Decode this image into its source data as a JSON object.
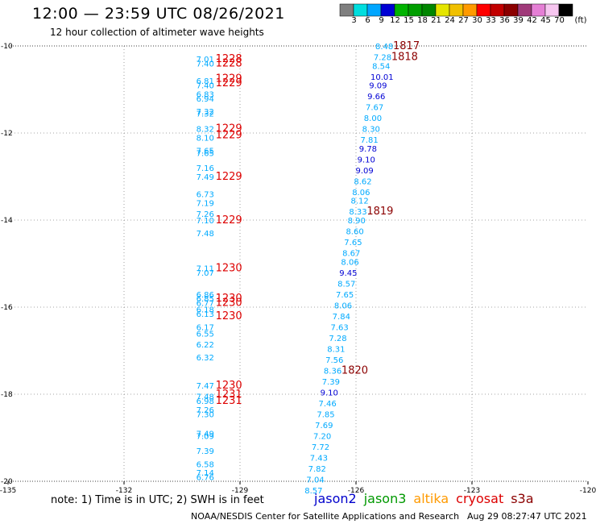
{
  "header": {
    "title": "12:00 — 23:59 UTC 08/26/2021",
    "subtitle": "12 hour collection of altimeter wave heights"
  },
  "color_scale": {
    "unit_label": "(ft)",
    "labels": [
      "3",
      "6",
      "9",
      "12",
      "15",
      "18",
      "21",
      "24",
      "27",
      "30",
      "33",
      "36",
      "39",
      "42",
      "45",
      "70"
    ],
    "colors": [
      "#7f7f7f",
      "#00dede",
      "#00a6ff",
      "#0000d4",
      "#00b300",
      "#009e00",
      "#008600",
      "#e5e500",
      "#f0c000",
      "#ff9a00",
      "#ff0000",
      "#c20000",
      "#8b0000",
      "#a03a7a",
      "#e57fd5",
      "#f7c6f0",
      "#000000"
    ]
  },
  "chart_data": {
    "type": "scatter",
    "xlim": [
      -135,
      -120
    ],
    "ylim": [
      -20,
      -10
    ],
    "x_ticks": [
      "-135",
      "-132",
      "-129",
      "-126",
      "-123",
      "-120"
    ],
    "y_ticks": [
      "-10",
      "-12",
      "-14",
      "-16",
      "-18",
      "-20"
    ],
    "grid": true,
    "series": [
      {
        "name": "cryosat",
        "color": "#dd0000",
        "points": [
          {
            "x": -129.3,
            "y": -10.3,
            "v": "7.01"
          },
          {
            "x": -129.3,
            "y": -10.4,
            "v": "7.40"
          },
          {
            "x": -129.3,
            "y": -10.8,
            "v": "6.81"
          },
          {
            "x": -129.3,
            "y": -10.9,
            "v": "7.40"
          },
          {
            "x": -129.3,
            "y": -11.1,
            "v": "6.83"
          },
          {
            "x": -129.3,
            "y": -11.2,
            "v": "6.94"
          },
          {
            "x": -129.3,
            "y": -11.5,
            "v": "7.32"
          },
          {
            "x": -129.3,
            "y": -11.55,
            "v": "7.32"
          },
          {
            "x": -129.3,
            "y": -11.9,
            "v": "8.32"
          },
          {
            "x": -129.3,
            "y": -12.1,
            "v": "8.10"
          },
          {
            "x": -129.3,
            "y": -12.4,
            "v": "7.65"
          },
          {
            "x": -129.3,
            "y": -12.45,
            "v": "7.65"
          },
          {
            "x": -129.3,
            "y": -12.8,
            "v": "7.16"
          },
          {
            "x": -129.3,
            "y": -13.0,
            "v": "7.49"
          },
          {
            "x": -129.3,
            "y": -13.4,
            "v": "6.73"
          },
          {
            "x": -129.3,
            "y": -13.6,
            "v": "7.19"
          },
          {
            "x": -129.3,
            "y": -13.85,
            "v": "7.26"
          },
          {
            "x": -129.3,
            "y": -14.0,
            "v": "7.10"
          },
          {
            "x": -129.3,
            "y": -14.3,
            "v": "7.48"
          },
          {
            "x": -129.3,
            "y": -15.1,
            "v": "7.11"
          },
          {
            "x": -129.3,
            "y": -15.2,
            "v": "7.07"
          },
          {
            "x": -129.3,
            "y": -15.7,
            "v": "6.86"
          },
          {
            "x": -129.3,
            "y": -15.8,
            "v": "6.85"
          },
          {
            "x": -129.3,
            "y": -15.9,
            "v": "6.77"
          },
          {
            "x": -129.3,
            "y": -16.05,
            "v": "6.18"
          },
          {
            "x": -129.3,
            "y": -16.15,
            "v": "6.13"
          },
          {
            "x": -129.3,
            "y": -16.45,
            "v": "6.17"
          },
          {
            "x": -129.3,
            "y": -16.6,
            "v": "6.55"
          },
          {
            "x": -129.3,
            "y": -16.85,
            "v": "6.22"
          },
          {
            "x": -129.3,
            "y": -17.15,
            "v": "6.32"
          },
          {
            "x": -129.3,
            "y": -17.8,
            "v": "7.47"
          },
          {
            "x": -129.3,
            "y": -18.05,
            "v": "7.48"
          },
          {
            "x": -129.3,
            "y": -18.15,
            "v": "6.98"
          },
          {
            "x": -129.3,
            "y": -18.35,
            "v": "7.26"
          },
          {
            "x": -129.3,
            "y": -18.45,
            "v": "7.30"
          },
          {
            "x": -129.3,
            "y": -18.9,
            "v": "7.49"
          },
          {
            "x": -129.3,
            "y": -18.95,
            "v": "7.09"
          },
          {
            "x": -129.3,
            "y": -19.3,
            "v": "7.39"
          },
          {
            "x": -129.3,
            "y": -19.6,
            "v": "6.58"
          },
          {
            "x": -129.3,
            "y": -19.8,
            "v": "7.14"
          },
          {
            "x": -129.3,
            "y": -19.9,
            "v": "6.76"
          }
        ]
      },
      {
        "name": "cryosat-pass",
        "color": "#dd0000",
        "points": [
          {
            "x": -129.3,
            "y": -10.3,
            "v": "1228"
          },
          {
            "x": -129.3,
            "y": -10.4,
            "v": "1228"
          },
          {
            "x": -129.3,
            "y": -10.75,
            "v": "1229"
          },
          {
            "x": -129.3,
            "y": -10.85,
            "v": "1229"
          },
          {
            "x": -129.3,
            "y": -11.9,
            "v": "1229"
          },
          {
            "x": -129.3,
            "y": -12.05,
            "v": "1229"
          },
          {
            "x": -129.3,
            "y": -13.0,
            "v": "1229"
          },
          {
            "x": -129.3,
            "y": -14.0,
            "v": "1229"
          },
          {
            "x": -129.3,
            "y": -15.1,
            "v": "1230"
          },
          {
            "x": -129.3,
            "y": -15.8,
            "v": "1230"
          },
          {
            "x": -129.3,
            "y": -15.9,
            "v": "1230"
          },
          {
            "x": -129.3,
            "y": -16.2,
            "v": "1230"
          },
          {
            "x": -129.3,
            "y": -17.8,
            "v": "1230"
          },
          {
            "x": -129.3,
            "y": -18.0,
            "v": "1231"
          },
          {
            "x": -129.3,
            "y": -18.15,
            "v": "1231"
          }
        ]
      },
      {
        "name": "jason2",
        "color": "#0000cc",
        "points": [
          {
            "x": -126.0,
            "y": -10.0,
            "v": "8.48"
          },
          {
            "x": -126.0,
            "y": -10.25,
            "v": "7.28"
          },
          {
            "x": -126.0,
            "y": -10.45,
            "v": "8.54"
          },
          {
            "x": -126.0,
            "y": -10.7,
            "v": "10.01"
          },
          {
            "x": -126.0,
            "y": -10.9,
            "v": "9.09"
          },
          {
            "x": -126.0,
            "y": -11.15,
            "v": "9.66"
          },
          {
            "x": -126.0,
            "y": -11.4,
            "v": "7.67"
          },
          {
            "x": -126.0,
            "y": -11.65,
            "v": "8.00"
          },
          {
            "x": -126.0,
            "y": -11.9,
            "v": "8.30"
          },
          {
            "x": -126.0,
            "y": -12.15,
            "v": "7.81"
          },
          {
            "x": -126.0,
            "y": -12.35,
            "v": "9.78"
          },
          {
            "x": -126.0,
            "y": -12.6,
            "v": "9.10"
          },
          {
            "x": -126.0,
            "y": -12.85,
            "v": "9.09"
          },
          {
            "x": -126.0,
            "y": -13.1,
            "v": "8.62"
          },
          {
            "x": -126.0,
            "y": -13.35,
            "v": "8.06"
          },
          {
            "x": -126.0,
            "y": -13.55,
            "v": "8.12"
          },
          {
            "x": -126.0,
            "y": -13.8,
            "v": "8.33"
          },
          {
            "x": -126.0,
            "y": -14.0,
            "v": "8.90"
          },
          {
            "x": -126.0,
            "y": -14.25,
            "v": "8.60"
          },
          {
            "x": -126.0,
            "y": -14.5,
            "v": "7.65"
          },
          {
            "x": -126.0,
            "y": -14.75,
            "v": "8.67"
          },
          {
            "x": -126.0,
            "y": -14.95,
            "v": "8.06"
          },
          {
            "x": -126.0,
            "y": -15.2,
            "v": "9.45"
          },
          {
            "x": -126.0,
            "y": -15.45,
            "v": "8.57"
          },
          {
            "x": -126.0,
            "y": -15.7,
            "v": "7.65"
          },
          {
            "x": -126.0,
            "y": -15.95,
            "v": "8.06"
          },
          {
            "x": -126.0,
            "y": -16.2,
            "v": "7.84"
          },
          {
            "x": -126.0,
            "y": -16.45,
            "v": "7.63"
          },
          {
            "x": -126.0,
            "y": -16.7,
            "v": "7.28"
          },
          {
            "x": -126.0,
            "y": -16.95,
            "v": "8.31"
          },
          {
            "x": -126.0,
            "y": -17.2,
            "v": "7.56"
          },
          {
            "x": -126.0,
            "y": -17.45,
            "v": "8.36"
          },
          {
            "x": -126.0,
            "y": -17.7,
            "v": "7.39"
          },
          {
            "x": -126.0,
            "y": -17.95,
            "v": "9.10"
          },
          {
            "x": -126.0,
            "y": -18.2,
            "v": "7.46"
          },
          {
            "x": -126.0,
            "y": -18.45,
            "v": "7.85"
          },
          {
            "x": -126.0,
            "y": -18.7,
            "v": "7.69"
          },
          {
            "x": -126.0,
            "y": -18.95,
            "v": "7.20"
          },
          {
            "x": -126.0,
            "y": -19.2,
            "v": "7.72"
          },
          {
            "x": -126.0,
            "y": -19.45,
            "v": "7.43"
          },
          {
            "x": -126.0,
            "y": -19.7,
            "v": "7.82"
          },
          {
            "x": -126.0,
            "y": -19.95,
            "v": "7.04"
          },
          {
            "x": -126.0,
            "y": -20.2,
            "v": "8.57"
          }
        ]
      },
      {
        "name": "jason2-pass",
        "color": "#8b0000",
        "points": [
          {
            "x": -126.0,
            "y": -10.0,
            "v": "1817"
          },
          {
            "x": -126.0,
            "y": -10.25,
            "v": "1818"
          },
          {
            "x": -126.0,
            "y": -13.8,
            "v": "1819"
          },
          {
            "x": -126.0,
            "y": -17.45,
            "v": "1820"
          }
        ]
      }
    ]
  },
  "footer": {
    "note": "note: 1) Time is in UTC; 2) SWH is in feet",
    "legend": [
      {
        "label": "jason2",
        "color": "#0000cc"
      },
      {
        "label": "jason3",
        "color": "#009900"
      },
      {
        "label": "altika",
        "color": "#ff9a00"
      },
      {
        "label": "cryosat",
        "color": "#dd0000"
      },
      {
        "label": "s3a",
        "color": "#8b0000"
      }
    ],
    "credit": "NOAA/NESDIS Center for Satellite Applications and Research",
    "timestamp": "Aug 29 08:27:47 UTC 2021"
  }
}
